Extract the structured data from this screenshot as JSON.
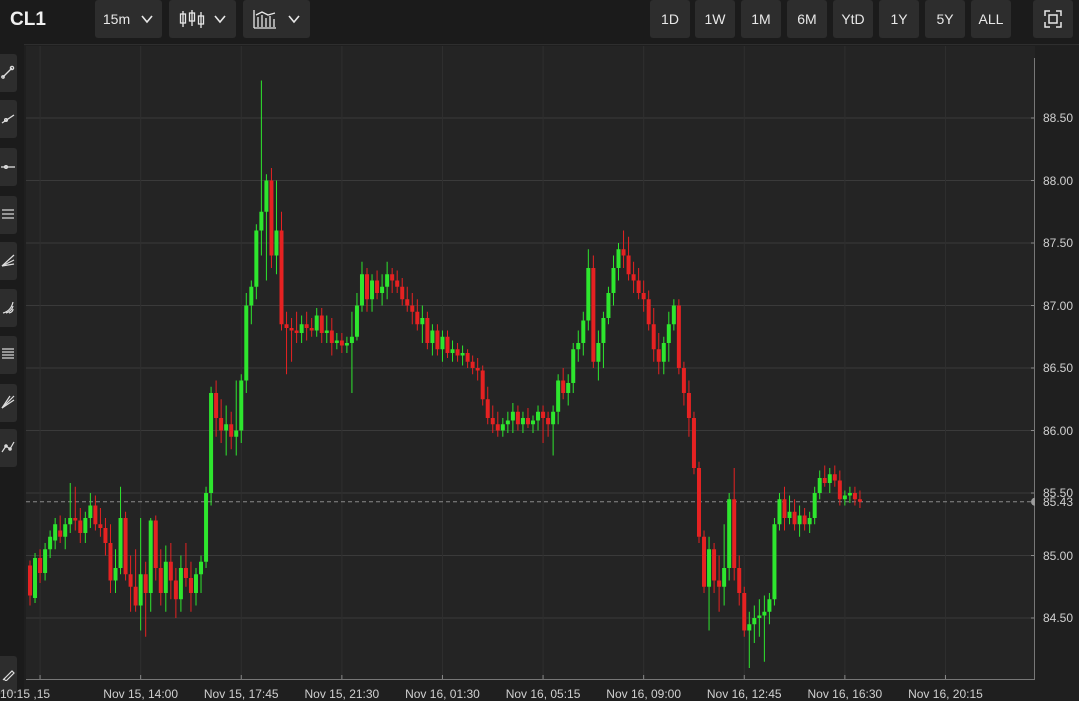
{
  "toolbar": {
    "symbol": "CL1",
    "interval": "15m",
    "chart_type_icon": "candlestick-icon",
    "indicators_icon": "indicators-icon",
    "ranges": [
      "1D",
      "1W",
      "1M",
      "6M",
      "YtD",
      "1Y",
      "5Y",
      "ALL"
    ],
    "fullscreen_icon": "fullscreen-icon"
  },
  "sidebar": {
    "tools": [
      "line-tool-icon",
      "ray-tool-icon",
      "horizontal-line-icon",
      "channel-icon",
      "pitchfork-icon",
      "fan-icon",
      "fibonacci-icon",
      "gann-icon",
      "path-icon",
      "brush-icon"
    ]
  },
  "colors": {
    "up": "#2ee62e",
    "down": "#e52222",
    "grid": "#3a3a3a",
    "background": "#242424"
  },
  "chart_data": {
    "type": "candlestick",
    "ylim": [
      84.1,
      89.0
    ],
    "y_ticks": [
      84.5,
      85.0,
      85.5,
      86.0,
      86.5,
      87.0,
      87.5,
      88.0,
      88.5
    ],
    "y_tick_labels": [
      "84.50",
      "85.00",
      "85.50",
      "86.00",
      "86.50",
      "87.00",
      "87.50",
      "88.00",
      "88.50"
    ],
    "x_tick_labels": [
      "15, 10:15",
      "Nov 15, 14:00",
      "Nov 15, 17:45",
      "Nov 15, 21:30",
      "Nov 16, 01:30",
      "Nov 16, 05:15",
      "Nov 16, 09:00",
      "Nov 16, 12:45",
      "Nov 16, 16:30",
      "Nov 16, 20:15"
    ],
    "x_tick_bar_index": [
      2,
      22,
      42,
      62,
      82,
      102,
      122,
      142,
      162,
      182
    ],
    "last_price": 85.43,
    "last_price_label": "85.43",
    "grid": true,
    "candles": [
      [
        84.92,
        84.96,
        84.6,
        84.68
      ],
      [
        84.66,
        85.02,
        84.62,
        84.98
      ],
      [
        84.98,
        85.05,
        84.78,
        84.86
      ],
      [
        84.86,
        85.1,
        84.8,
        85.05
      ],
      [
        85.05,
        85.2,
        84.98,
        85.15
      ],
      [
        85.12,
        85.3,
        85.05,
        85.25
      ],
      [
        85.2,
        85.32,
        85.1,
        85.15
      ],
      [
        85.15,
        85.3,
        85.05,
        85.25
      ],
      [
        85.25,
        85.58,
        85.18,
        85.3
      ],
      [
        85.3,
        85.55,
        85.2,
        85.28
      ],
      [
        85.28,
        85.38,
        85.1,
        85.18
      ],
      [
        85.18,
        85.35,
        85.1,
        85.3
      ],
      [
        85.3,
        85.5,
        85.22,
        85.4
      ],
      [
        85.4,
        85.48,
        85.2,
        85.25
      ],
      [
        85.25,
        85.38,
        85.15,
        85.22
      ],
      [
        85.22,
        85.3,
        85.0,
        85.1
      ],
      [
        85.1,
        85.25,
        84.7,
        84.8
      ],
      [
        84.8,
        85.05,
        84.7,
        84.9
      ],
      [
        84.9,
        85.55,
        84.85,
        85.3
      ],
      [
        85.3,
        85.35,
        84.8,
        84.85
      ],
      [
        84.85,
        85.0,
        84.55,
        84.75
      ],
      [
        84.75,
        85.05,
        84.55,
        84.6
      ],
      [
        84.6,
        85.3,
        84.4,
        84.85
      ],
      [
        84.85,
        84.95,
        84.35,
        84.7
      ],
      [
        84.7,
        85.3,
        84.55,
        85.28
      ],
      [
        85.28,
        85.32,
        84.8,
        84.9
      ],
      [
        84.9,
        85.05,
        84.6,
        84.7
      ],
      [
        84.7,
        85.08,
        84.55,
        84.95
      ],
      [
        84.95,
        85.1,
        84.65,
        84.8
      ],
      [
        84.8,
        84.9,
        84.5,
        84.65
      ],
      [
        84.65,
        85.0,
        84.55,
        84.9
      ],
      [
        84.9,
        85.1,
        84.75,
        84.82
      ],
      [
        84.82,
        84.95,
        84.55,
        84.7
      ],
      [
        84.7,
        84.9,
        84.6,
        84.85
      ],
      [
        84.85,
        85.0,
        84.7,
        84.95
      ],
      [
        84.95,
        85.55,
        84.9,
        85.5
      ],
      [
        85.5,
        86.35,
        85.4,
        86.3
      ],
      [
        86.3,
        86.4,
        85.95,
        86.1
      ],
      [
        86.1,
        86.25,
        85.9,
        86.0
      ],
      [
        86.0,
        86.2,
        85.8,
        86.05
      ],
      [
        86.05,
        86.15,
        85.85,
        85.95
      ],
      [
        85.95,
        86.4,
        85.8,
        86.0
      ],
      [
        86.0,
        86.45,
        85.9,
        86.4
      ],
      [
        86.4,
        87.1,
        86.3,
        87.0
      ],
      [
        87.0,
        87.2,
        86.85,
        87.15
      ],
      [
        87.15,
        87.65,
        87.05,
        87.6
      ],
      [
        87.6,
        88.8,
        87.4,
        87.75
      ],
      [
        87.75,
        88.05,
        87.2,
        88.0
      ],
      [
        88.0,
        88.1,
        87.3,
        87.4
      ],
      [
        87.4,
        88.0,
        87.25,
        87.6
      ],
      [
        87.6,
        87.75,
        86.8,
        86.85
      ],
      [
        86.85,
        86.95,
        86.45,
        86.82
      ],
      [
        86.82,
        86.9,
        86.55,
        86.8
      ],
      [
        86.8,
        86.95,
        86.7,
        86.78
      ],
      [
        86.78,
        86.92,
        86.7,
        86.85
      ],
      [
        86.85,
        86.95,
        86.72,
        86.82
      ],
      [
        86.82,
        86.9,
        86.75,
        86.8
      ],
      [
        86.8,
        86.98,
        86.75,
        86.92
      ],
      [
        86.92,
        86.98,
        86.7,
        86.78
      ],
      [
        86.78,
        86.92,
        86.7,
        86.8
      ],
      [
        86.8,
        86.9,
        86.6,
        86.7
      ],
      [
        86.7,
        86.78,
        86.65,
        86.72
      ],
      [
        86.72,
        86.78,
        86.62,
        86.68
      ],
      [
        86.68,
        86.75,
        86.62,
        86.7
      ],
      [
        86.7,
        86.95,
        86.3,
        86.75
      ],
      [
        86.75,
        87.1,
        86.72,
        87.0
      ],
      [
        87.0,
        87.35,
        86.95,
        87.25
      ],
      [
        87.25,
        87.3,
        86.95,
        87.05
      ],
      [
        87.05,
        87.25,
        86.95,
        87.2
      ],
      [
        87.2,
        87.28,
        87.05,
        87.1
      ],
      [
        87.1,
        87.25,
        87.0,
        87.15
      ],
      [
        87.15,
        87.35,
        87.05,
        87.25
      ],
      [
        87.25,
        87.3,
        87.1,
        87.2
      ],
      [
        87.2,
        87.28,
        87.1,
        87.15
      ],
      [
        87.15,
        87.22,
        87.0,
        87.05
      ],
      [
        87.05,
        87.15,
        86.95,
        87.0
      ],
      [
        87.0,
        87.1,
        86.85,
        86.95
      ],
      [
        86.95,
        87.05,
        86.8,
        86.85
      ],
      [
        86.85,
        87.0,
        86.7,
        86.9
      ],
      [
        86.9,
        86.95,
        86.65,
        86.7
      ],
      [
        86.7,
        86.85,
        86.6,
        86.8
      ],
      [
        86.8,
        86.85,
        86.6,
        86.65
      ],
      [
        86.65,
        86.8,
        86.55,
        86.75
      ],
      [
        86.75,
        86.8,
        86.58,
        86.62
      ],
      [
        86.62,
        86.72,
        86.55,
        86.65
      ],
      [
        86.65,
        86.7,
        86.55,
        86.6
      ],
      [
        86.6,
        86.68,
        86.52,
        86.62
      ],
      [
        86.62,
        86.65,
        86.5,
        86.55
      ],
      [
        86.55,
        86.6,
        86.45,
        86.5
      ],
      [
        86.5,
        86.58,
        86.4,
        86.48
      ],
      [
        86.48,
        86.52,
        86.2,
        86.25
      ],
      [
        86.25,
        86.35,
        86.05,
        86.1
      ],
      [
        86.1,
        86.2,
        85.98,
        86.05
      ],
      [
        86.05,
        86.15,
        85.95,
        86.0
      ],
      [
        86.0,
        86.1,
        85.95,
        86.05
      ],
      [
        86.05,
        86.15,
        85.98,
        86.08
      ],
      [
        86.08,
        86.22,
        85.98,
        86.15
      ],
      [
        86.15,
        86.2,
        86.0,
        86.05
      ],
      [
        86.05,
        86.15,
        85.98,
        86.1
      ],
      [
        86.1,
        86.18,
        86.02,
        86.05
      ],
      [
        86.05,
        86.12,
        85.98,
        86.08
      ],
      [
        86.08,
        86.2,
        86.0,
        86.15
      ],
      [
        86.15,
        86.2,
        85.9,
        86.1
      ],
      [
        86.1,
        86.15,
        85.95,
        86.05
      ],
      [
        86.05,
        86.2,
        85.8,
        86.15
      ],
      [
        86.15,
        86.45,
        86.05,
        86.4
      ],
      [
        86.4,
        86.5,
        86.25,
        86.3
      ],
      [
        86.3,
        86.45,
        86.2,
        86.38
      ],
      [
        86.38,
        86.7,
        86.3,
        86.65
      ],
      [
        86.65,
        86.8,
        86.55,
        86.7
      ],
      [
        86.7,
        86.95,
        86.6,
        86.88
      ],
      [
        86.88,
        87.45,
        86.8,
        87.3
      ],
      [
        87.3,
        87.4,
        86.5,
        86.55
      ],
      [
        86.55,
        86.8,
        86.4,
        86.7
      ],
      [
        86.7,
        86.95,
        86.5,
        86.9
      ],
      [
        86.9,
        87.15,
        86.85,
        87.1
      ],
      [
        87.1,
        87.4,
        87.0,
        87.3
      ],
      [
        87.3,
        87.5,
        87.2,
        87.45
      ],
      [
        87.45,
        87.6,
        87.3,
        87.4
      ],
      [
        87.4,
        87.55,
        87.2,
        87.25
      ],
      [
        87.25,
        87.35,
        87.1,
        87.2
      ],
      [
        87.2,
        87.3,
        87.05,
        87.1
      ],
      [
        87.1,
        87.2,
        86.95,
        87.05
      ],
      [
        87.05,
        87.12,
        86.8,
        86.85
      ],
      [
        86.85,
        86.98,
        86.55,
        86.65
      ],
      [
        86.65,
        86.78,
        86.45,
        86.55
      ],
      [
        86.55,
        86.75,
        86.45,
        86.7
      ],
      [
        86.7,
        86.95,
        86.55,
        86.85
      ],
      [
        86.85,
        87.05,
        86.8,
        87.0
      ],
      [
        87.0,
        87.05,
        86.45,
        86.5
      ],
      [
        86.5,
        86.55,
        86.2,
        86.3
      ],
      [
        86.3,
        86.4,
        85.95,
        86.1
      ],
      [
        86.1,
        86.15,
        85.65,
        85.7
      ],
      [
        85.7,
        85.75,
        85.1,
        85.15
      ],
      [
        85.15,
        85.2,
        84.7,
        84.75
      ],
      [
        84.75,
        85.15,
        84.4,
        85.05
      ],
      [
        85.05,
        85.1,
        84.7,
        84.8
      ],
      [
        84.8,
        85.0,
        84.55,
        84.75
      ],
      [
        84.75,
        85.25,
        84.6,
        84.9
      ],
      [
        84.9,
        85.5,
        84.8,
        85.45
      ],
      [
        85.45,
        85.7,
        84.8,
        84.9
      ],
      [
        84.9,
        85.0,
        84.6,
        84.7
      ],
      [
        84.7,
        84.75,
        84.35,
        84.4
      ],
      [
        84.4,
        84.55,
        84.1,
        84.45
      ],
      [
        84.45,
        84.6,
        84.3,
        84.5
      ],
      [
        84.5,
        84.65,
        84.35,
        84.52
      ],
      [
        84.52,
        84.68,
        84.15,
        84.55
      ],
      [
        84.55,
        84.7,
        84.45,
        84.65
      ],
      [
        84.65,
        85.3,
        84.6,
        85.25
      ],
      [
        85.25,
        85.5,
        85.2,
        85.45
      ],
      [
        85.45,
        85.55,
        85.2,
        85.3
      ],
      [
        85.3,
        85.48,
        85.25,
        85.35
      ],
      [
        85.35,
        85.45,
        85.2,
        85.25
      ],
      [
        85.25,
        85.4,
        85.15,
        85.32
      ],
      [
        85.32,
        85.38,
        85.2,
        85.25
      ],
      [
        85.25,
        85.35,
        85.18,
        85.3
      ],
      [
        85.3,
        85.55,
        85.25,
        85.5
      ],
      [
        85.5,
        85.68,
        85.45,
        85.62
      ],
      [
        85.62,
        85.72,
        85.55,
        85.58
      ],
      [
        85.58,
        85.7,
        85.5,
        85.65
      ],
      [
        85.65,
        85.72,
        85.55,
        85.6
      ],
      [
        85.6,
        85.68,
        85.4,
        85.45
      ],
      [
        85.45,
        85.52,
        85.4,
        85.48
      ],
      [
        85.48,
        85.55,
        85.42,
        85.5
      ],
      [
        85.5,
        85.55,
        85.4,
        85.45
      ],
      [
        85.45,
        85.52,
        85.38,
        85.43
      ]
    ]
  }
}
